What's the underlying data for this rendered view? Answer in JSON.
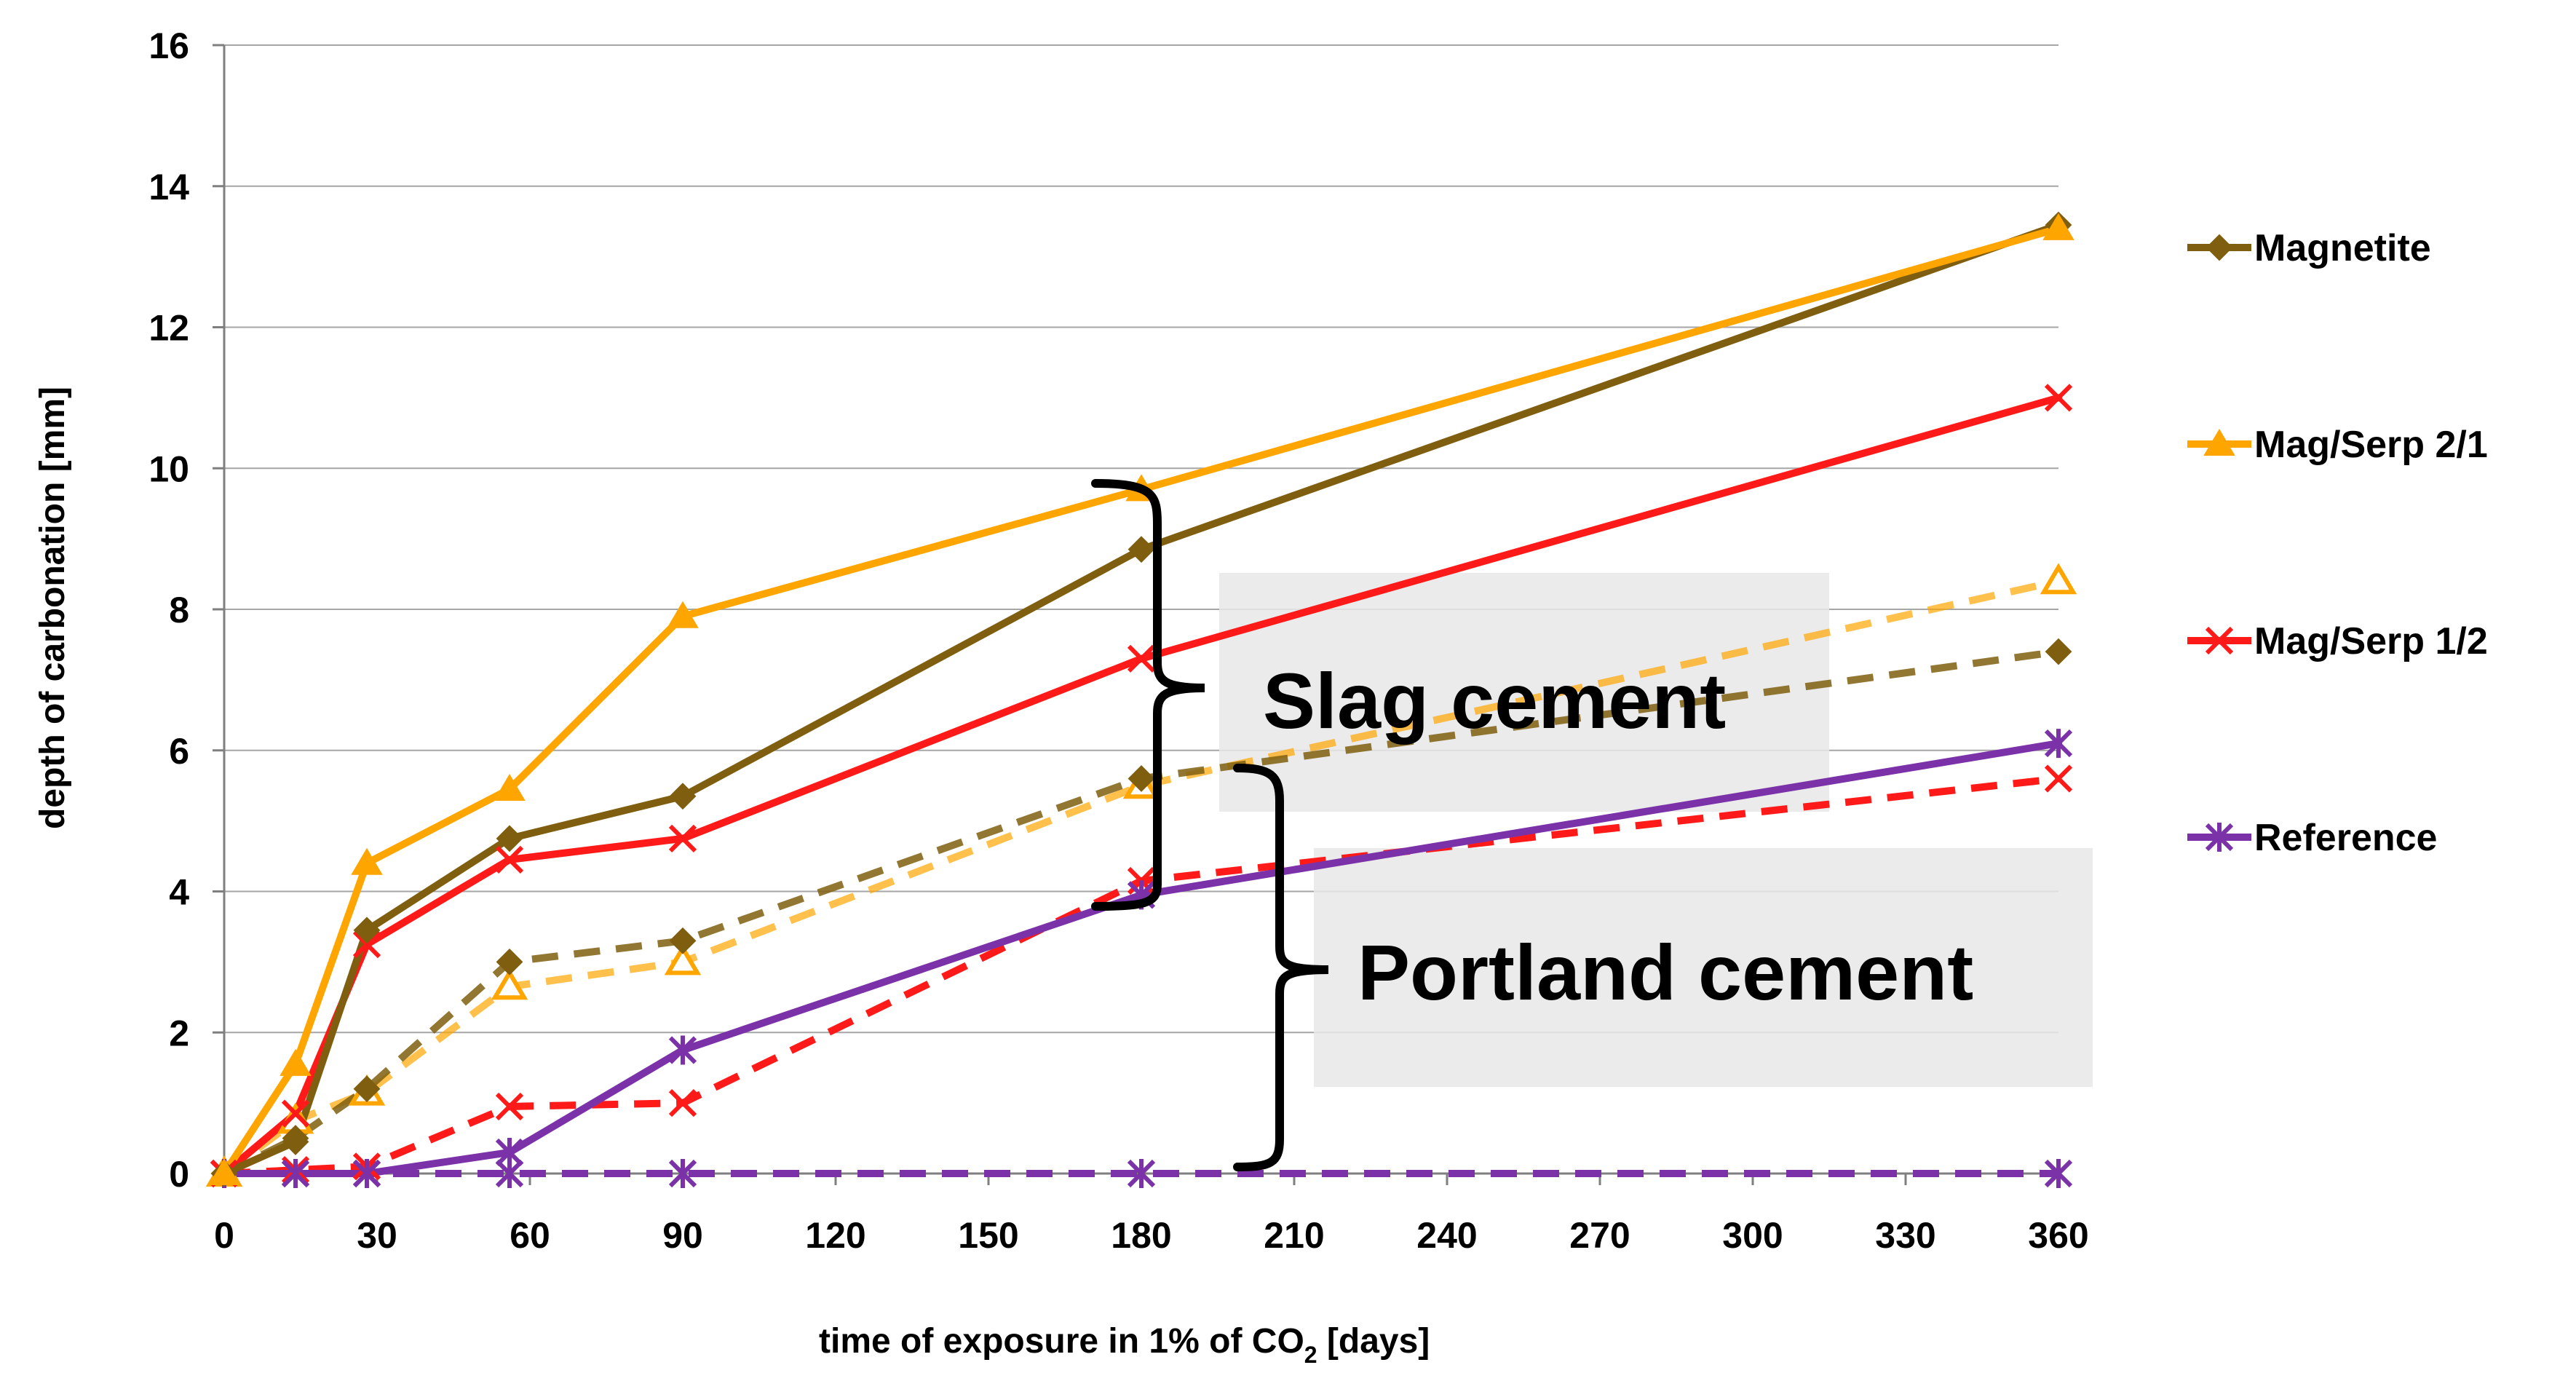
{
  "chart_data": {
    "type": "line",
    "title": "",
    "xlabel": "time of exposure in 1% of CO",
    "xlabel_sub": "2",
    "xlabel_suffix": " [days]",
    "ylabel": "depth of carbonation [mm]",
    "xlim": [
      0,
      360
    ],
    "ylim": [
      0,
      16
    ],
    "xticks": [
      0,
      30,
      60,
      90,
      120,
      150,
      180,
      210,
      240,
      270,
      300,
      330,
      360
    ],
    "yticks": [
      0,
      2,
      4,
      6,
      8,
      10,
      12,
      14,
      16
    ],
    "grid": "horizontal",
    "legend_position": "right",
    "series": [
      {
        "name": "Magnetite",
        "group": "Slag cement",
        "dash": "solid",
        "marker": "diamond",
        "color": "#7F5F0F",
        "x": [
          0,
          14,
          28,
          56,
          90,
          180,
          360
        ],
        "y": [
          0,
          0.45,
          3.45,
          4.75,
          5.35,
          8.85,
          13.45
        ]
      },
      {
        "name": "Mag/Serp 2/1",
        "group": "Slag cement",
        "dash": "solid",
        "marker": "triangle",
        "color": "#FFA500",
        "x": [
          0,
          14,
          28,
          56,
          90,
          180,
          360
        ],
        "y": [
          0,
          1.55,
          4.4,
          5.45,
          7.9,
          9.7,
          13.4
        ]
      },
      {
        "name": "Mag/Serp 1/2",
        "group": "Slag cement",
        "dash": "solid",
        "marker": "x",
        "color": "#FF1A1A",
        "x": [
          0,
          14,
          28,
          56,
          90,
          180,
          360
        ],
        "y": [
          0,
          0.85,
          3.25,
          4.45,
          4.75,
          7.3,
          11.0
        ]
      },
      {
        "name": "Reference",
        "group": "Slag cement",
        "dash": "solid",
        "marker": "asterisk",
        "color": "#7B32A8",
        "x": [
          0,
          14,
          28,
          56,
          90,
          180,
          360
        ],
        "y": [
          0,
          0,
          0,
          0.3,
          1.75,
          3.95,
          6.1
        ]
      },
      {
        "name": "Magnetite",
        "group": "Portland cement",
        "dash": "dashed",
        "marker": "diamond",
        "color": "#7F5F0F",
        "x": [
          0,
          14,
          28,
          56,
          90,
          180,
          360
        ],
        "y": [
          0,
          0.5,
          1.2,
          3.0,
          3.3,
          5.6,
          7.4
        ]
      },
      {
        "name": "Mag/Serp 2/1",
        "group": "Portland cement",
        "dash": "dashed",
        "marker": "triangle-open",
        "color": "#FFA500",
        "x": [
          0,
          14,
          28,
          56,
          90,
          180,
          360
        ],
        "y": [
          0,
          0.75,
          1.15,
          2.65,
          3.0,
          5.5,
          8.4
        ]
      },
      {
        "name": "Mag/Serp 1/2",
        "group": "Portland cement",
        "dash": "dashed",
        "marker": "x",
        "color": "#FF1A1A",
        "x": [
          0,
          14,
          28,
          56,
          90,
          180,
          360
        ],
        "y": [
          0,
          0.05,
          0.1,
          0.95,
          1.0,
          4.15,
          5.6
        ]
      },
      {
        "name": "Reference",
        "group": "Portland cement",
        "dash": "dashed",
        "marker": "asterisk",
        "color": "#7B32A8",
        "x": [
          0,
          14,
          28,
          56,
          90,
          180,
          360
        ],
        "y": [
          0,
          0,
          0,
          0,
          0,
          0,
          0
        ]
      }
    ],
    "legend": [
      {
        "label": "Magnetite",
        "marker": "diamond",
        "color": "#7F5F0F"
      },
      {
        "label": "Mag/Serp 2/1",
        "marker": "triangle",
        "color": "#FFA500"
      },
      {
        "label": "Mag/Serp 1/2",
        "marker": "x",
        "color": "#FF1A1A"
      },
      {
        "label": "Reference",
        "marker": "asterisk",
        "color": "#7B32A8"
      }
    ],
    "annotations": [
      {
        "label": "Slag cement"
      },
      {
        "label": "Portland cement"
      }
    ]
  }
}
